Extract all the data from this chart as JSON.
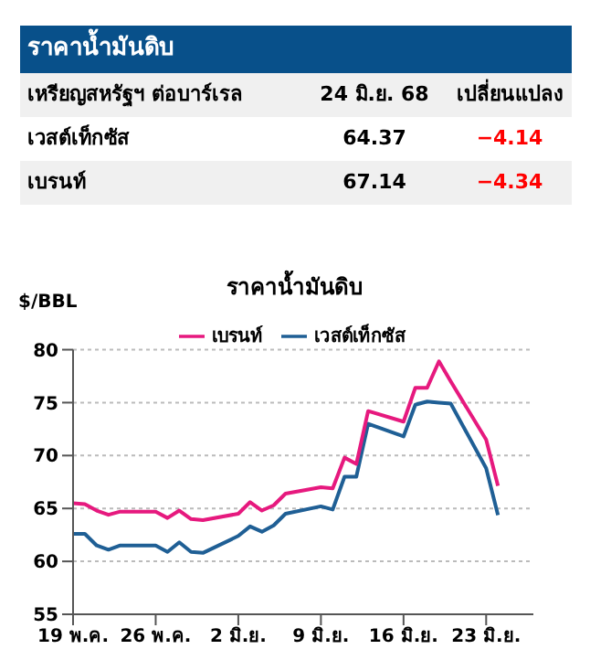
{
  "chart_data": {
    "type": "line",
    "title": "ราคาน้ำมันดิบ",
    "ylabel": "$/BBL",
    "annotations": [
      "ราคาน้ำมันดิบ",
      "เหรียญสหรัฐฯ ต่อบาร์เรล",
      "24 มิ.ย. 68",
      "เปลี่ยนแปลง",
      "เวสต์เท็กซัส",
      "64.37",
      "−4.14",
      "เบรนท์",
      "67.14",
      "−4.34"
    ],
    "x": [
      "--05-19",
      "--05-20",
      "--05-21",
      "--05-22",
      "--05-23",
      "--05-26",
      "--05-27",
      "--05-28",
      "--05-29",
      "--05-30",
      "--06-02",
      "--06-03",
      "--06-04",
      "--06-05",
      "--06-06",
      "--06-09",
      "--06-10",
      "--06-11",
      "--06-12",
      "--06-13",
      "--06-16",
      "--06-17",
      "--06-18",
      "--06-19",
      "--06-20",
      "--06-23",
      "--06-24"
    ],
    "series": [
      {
        "name": "เวสต์เท็กซัส",
        "color": "#1f5f95",
        "values": [
          62.6,
          62.6,
          61.5,
          61.1,
          61.5,
          61.5,
          60.9,
          61.8,
          60.9,
          60.8,
          62.4,
          63.3,
          62.8,
          63.4,
          64.5,
          65.2,
          64.9,
          68.0,
          68.0,
          73.0,
          71.8,
          74.8,
          75.1,
          75.0,
          74.9,
          68.8,
          64.37
        ]
      },
      {
        "name": "เบรนท์",
        "color": "#e6197e",
        "values": [
          65.5,
          65.4,
          64.8,
          64.4,
          64.7,
          64.7,
          64.1,
          64.8,
          64.0,
          63.9,
          64.5,
          65.6,
          64.8,
          65.3,
          66.4,
          67.0,
          66.9,
          69.8,
          69.2,
          74.2,
          73.2,
          76.4,
          76.4,
          78.9,
          77.0,
          71.5,
          67.14
        ]
      }
    ],
    "xlim": [
      "--05-19",
      "--06-27"
    ],
    "xticks": [
      {
        "value": "--05-19",
        "label": "19 พ.ค."
      },
      {
        "value": "--05-26",
        "label": "26 พ.ค."
      },
      {
        "value": "--06-02",
        "label": "2 มิ.ย."
      },
      {
        "value": "--06-09",
        "label": "9 มิ.ย."
      },
      {
        "value": "--06-16",
        "label": "16 มิ.ย."
      },
      {
        "value": "--06-23",
        "label": "23 มิ.ย."
      }
    ],
    "ylim": [
      55,
      80
    ],
    "yticks": [
      55,
      60,
      65,
      70,
      75,
      80
    ],
    "grid": "y",
    "legend": "top",
    "marker": "none",
    "line_style": "solid"
  }
}
